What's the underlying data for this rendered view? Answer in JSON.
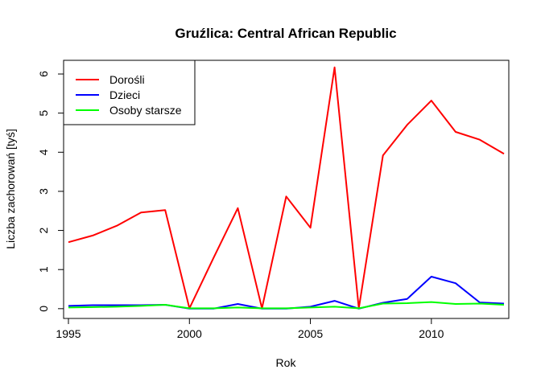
{
  "chart_data": {
    "type": "line",
    "title": "Gruźlica: Central African Republic",
    "xlabel": "Rok",
    "ylabel": "Liczba zachorowań [tyś]",
    "xlim": [
      1994.8,
      2013.2
    ],
    "ylim": [
      -0.25,
      6.35
    ],
    "x_ticks": [
      1995,
      2000,
      2005,
      2010
    ],
    "y_ticks": [
      0,
      1,
      2,
      3,
      4,
      5,
      6
    ],
    "grid": false,
    "legend_position": "top-left",
    "x": [
      1995,
      1996,
      1997,
      1998,
      1999,
      2000,
      2001,
      2002,
      2003,
      2004,
      2005,
      2006,
      2007,
      2008,
      2009,
      2010,
      2011,
      2012,
      2013
    ],
    "series": [
      {
        "name": "Dorośli",
        "color": "#ff0000",
        "values": [
          1.7,
          1.87,
          2.12,
          2.46,
          2.52,
          0.01,
          1.3,
          2.57,
          0.01,
          2.87,
          2.07,
          6.17,
          0.01,
          3.92,
          4.7,
          5.32,
          4.52,
          4.32,
          3.96
        ]
      },
      {
        "name": "Dzieci",
        "color": "#0000ff",
        "values": [
          0.07,
          0.09,
          0.09,
          0.09,
          0.1,
          0.0,
          0.0,
          0.12,
          0.0,
          0.0,
          0.05,
          0.2,
          0.0,
          0.15,
          0.25,
          0.82,
          0.65,
          0.16,
          0.13
        ]
      },
      {
        "name": "Osoby starsze",
        "color": "#00ff00",
        "values": [
          0.03,
          0.04,
          0.05,
          0.07,
          0.1,
          0.01,
          0.01,
          0.03,
          0.01,
          0.01,
          0.03,
          0.05,
          0.01,
          0.13,
          0.14,
          0.17,
          0.12,
          0.13,
          0.1
        ]
      }
    ]
  }
}
